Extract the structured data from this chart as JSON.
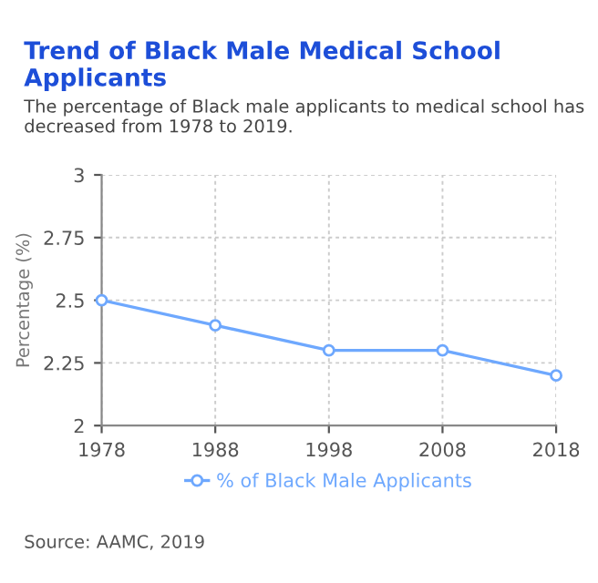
{
  "chart_data": {
    "type": "line",
    "title": "Trend of Black Male Medical School Applicants",
    "subtitle": "The percentage of Black male applicants to medical school has decreased from 1978 to 2019.",
    "ylabel": "Percentage (%)",
    "categories": [
      "1978",
      "1988",
      "1998",
      "2008",
      "2018"
    ],
    "series": [
      {
        "name": "% of Black Male Applicants",
        "color": "#6ea8fe",
        "values": [
          2.5,
          2.4,
          2.3,
          2.3,
          2.2
        ]
      }
    ],
    "ylim": [
      2,
      3
    ],
    "yticks": [
      2,
      2.25,
      2.5,
      2.75,
      3
    ],
    "grid": true,
    "legend": "bottom",
    "marker": "circle",
    "line_style": "solid",
    "annotations": [
      "Source: AAMC, 2019"
    ]
  }
}
